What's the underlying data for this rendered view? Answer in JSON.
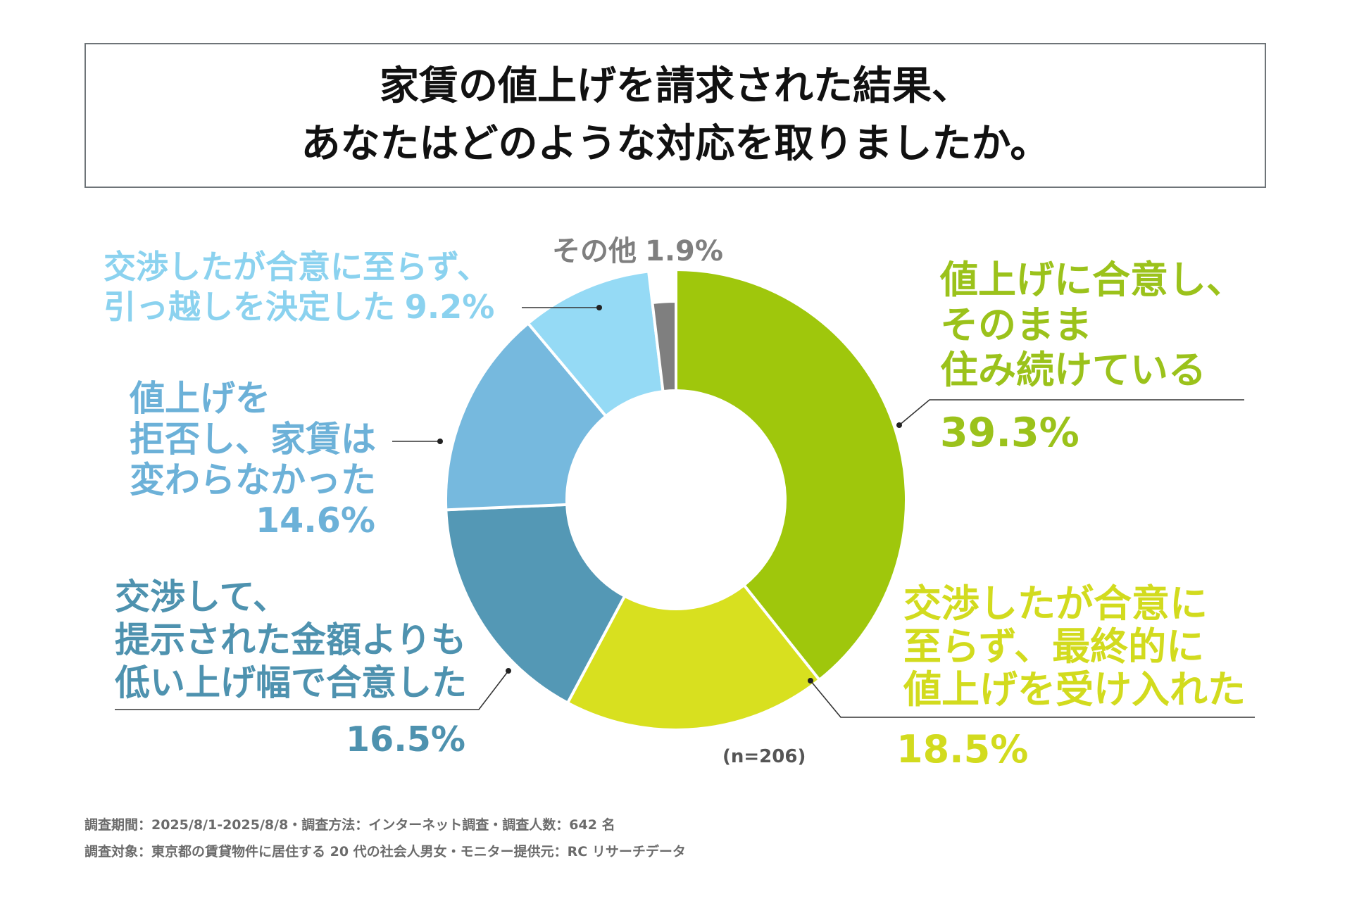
{
  "chart_data": {
    "type": "pie",
    "donut": true,
    "title": [
      "家賃の値上げを請求された結果、",
      "あなたはどのような対応を取りましたか。"
    ],
    "note": "(n=206)",
    "slices": [
      {
        "label": [
          "値上げに合意し、",
          "そのまま",
          "住み続けている"
        ],
        "value": 39.3,
        "value_label": "39.3%",
        "color": "#9fc70c",
        "text_color": "#9bc21b"
      },
      {
        "label": [
          "交渉したが合意に",
          "至らず、最終的に",
          "値上げを受け入れた"
        ],
        "value": 18.5,
        "value_label": "18.5%",
        "color": "#d8e01f",
        "text_color": "#d2db1e"
      },
      {
        "label": [
          "交渉して、",
          "提示された金額よりも",
          "低い上げ幅で合意した"
        ],
        "value": 16.5,
        "value_label": "16.5%",
        "color": "#5498b5",
        "text_color": "#4e92af"
      },
      {
        "label": [
          "値上げを",
          "拒否し、家賃は",
          "変わらなかった"
        ],
        "value": 14.6,
        "value_label": "14.6%",
        "color": "#76b9de",
        "text_color": "#6cb1d8"
      },
      {
        "label": [
          "交渉したが合意に至らず、",
          "引っ越しを決定した"
        ],
        "value": 9.2,
        "value_label": "9.2%",
        "color": "#95daf5",
        "text_color": "#8bd2ef"
      },
      {
        "label": [
          "その他"
        ],
        "value": 1.9,
        "value_label": "1.9%",
        "color": "#7f7f7f",
        "text_color": "#7f7f7f"
      }
    ]
  },
  "footer": {
    "line1": "調査期間：2025/8/1-2025/8/8・調査方法：インターネット調査・調査人数：642 名",
    "line2": "調査対象：東京都の賃貸物件に居住する 20 代の社会人男女・モニター提供元：RC リサーチデータ"
  }
}
